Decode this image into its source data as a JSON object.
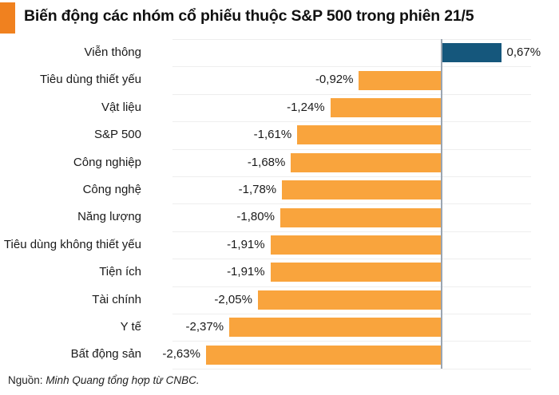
{
  "header": {
    "title": "Biến động các nhóm cổ phiếu thuộc S&P 500 trong phiên 21/5",
    "accent_color": "#F0811F"
  },
  "chart_data": {
    "type": "bar",
    "orientation": "horizontal",
    "title": "Biến động các nhóm cổ phiếu thuộc S&P 500 trong phiên 21/5",
    "categories": [
      "Viễn thông",
      "Tiêu dùng thiết yếu",
      "Vật liệu",
      "S&P 500",
      "Công nghiệp",
      "Công nghệ",
      "Năng lượng",
      "Tiêu dùng không thiết yếu",
      "Tiện ích",
      "Tài chính",
      "Y tế",
      "Bất động sản"
    ],
    "values": [
      0.67,
      -0.92,
      -1.24,
      -1.61,
      -1.68,
      -1.78,
      -1.8,
      -1.91,
      -1.91,
      -2.05,
      -2.37,
      -2.63
    ],
    "value_labels": [
      "0,67%",
      "-0,92%",
      "-1,24%",
      "-1,61%",
      "-1,68%",
      "-1,78%",
      "-1,80%",
      "-1,91%",
      "-1,91%",
      "-2,05%",
      "-2,37%",
      "-2,63%"
    ],
    "unit": "%",
    "xlim": [
      -3,
      1
    ],
    "grid": true,
    "positive_color": "#15577C",
    "negative_color": "#F9A43D",
    "axis_line_color": "#9aa5b1",
    "legend": "none"
  },
  "footer": {
    "source_prefix": "Nguồn:",
    "source_text": "Minh Quang tổng hợp từ CNBC."
  }
}
